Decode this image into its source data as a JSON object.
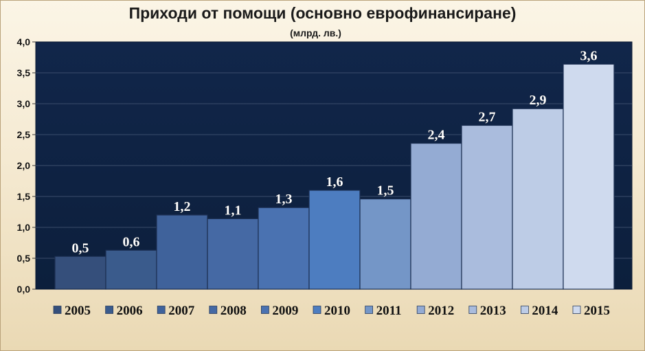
{
  "chart_data": {
    "type": "bar",
    "title": "Приходи от помощи (основно еврофинансиране)",
    "subtitle": "(млрд. лв.)",
    "xlabel": "",
    "ylabel": "",
    "categories": [
      "2005",
      "2006",
      "2007",
      "2008",
      "2009",
      "2010",
      "2011",
      "2012",
      "2013",
      "2014",
      "2015"
    ],
    "values": [
      0.53,
      0.63,
      1.2,
      1.14,
      1.32,
      1.6,
      1.46,
      2.36,
      2.65,
      2.92,
      3.64
    ],
    "data_labels": [
      "0,5",
      "0,6",
      "1,2",
      "1,1",
      "1,3",
      "1,6",
      "1,5",
      "2,4",
      "2,7",
      "2,9",
      "3,6"
    ],
    "ylim": [
      0,
      4.0
    ],
    "yticks": [
      "0,0",
      "0,5",
      "1,0",
      "1,5",
      "2,0",
      "2,5",
      "3,0",
      "3,5",
      "4,0"
    ],
    "colors": [
      "#354f7b",
      "#3a5b8c",
      "#3f629b",
      "#4569a4",
      "#4a72b1",
      "#4d7dc0",
      "#7496c7",
      "#94abd3",
      "#aabcdd",
      "#bdcce6",
      "#cfdaee"
    ],
    "plot_background": "#0f2445",
    "grid": true,
    "legend_position": "bottom"
  }
}
